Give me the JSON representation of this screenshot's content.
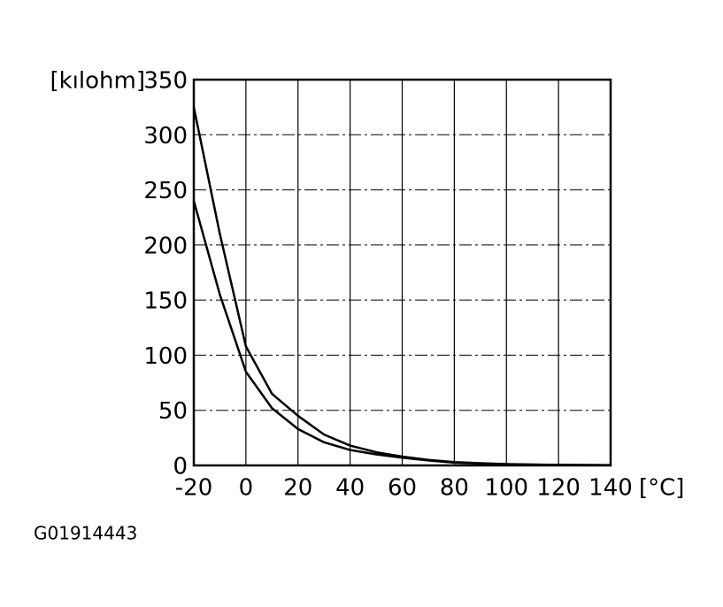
{
  "chart_data": {
    "type": "line",
    "y_label": "[kılohm]",
    "x_label": "[°C]",
    "footer": "G01914443",
    "x": [
      -20,
      -10,
      0,
      10,
      20,
      30,
      40,
      50,
      60,
      70,
      80,
      90,
      100,
      110,
      120,
      130,
      140
    ],
    "series": [
      {
        "color": "#000000",
        "values": [
          325,
          210,
          108,
          65,
          45,
          28,
          18,
          12,
          8,
          5,
          3,
          2,
          1.2,
          0.8,
          0.5,
          0.4,
          0.3
        ]
      },
      {
        "color": "#000000",
        "values": [
          240,
          155,
          85,
          52,
          33,
          21,
          14,
          10,
          7,
          4.5,
          2.5,
          1.8,
          1,
          0.7,
          0.5,
          0.3,
          0.2
        ]
      }
    ],
    "xlim": [
      -20,
      140
    ],
    "xticks": [
      -20,
      0,
      20,
      40,
      60,
      80,
      100,
      120,
      140
    ],
    "ylim": [
      0,
      350
    ],
    "yticks": [
      0,
      50,
      100,
      150,
      200,
      250,
      300,
      350
    ],
    "grid": true
  }
}
